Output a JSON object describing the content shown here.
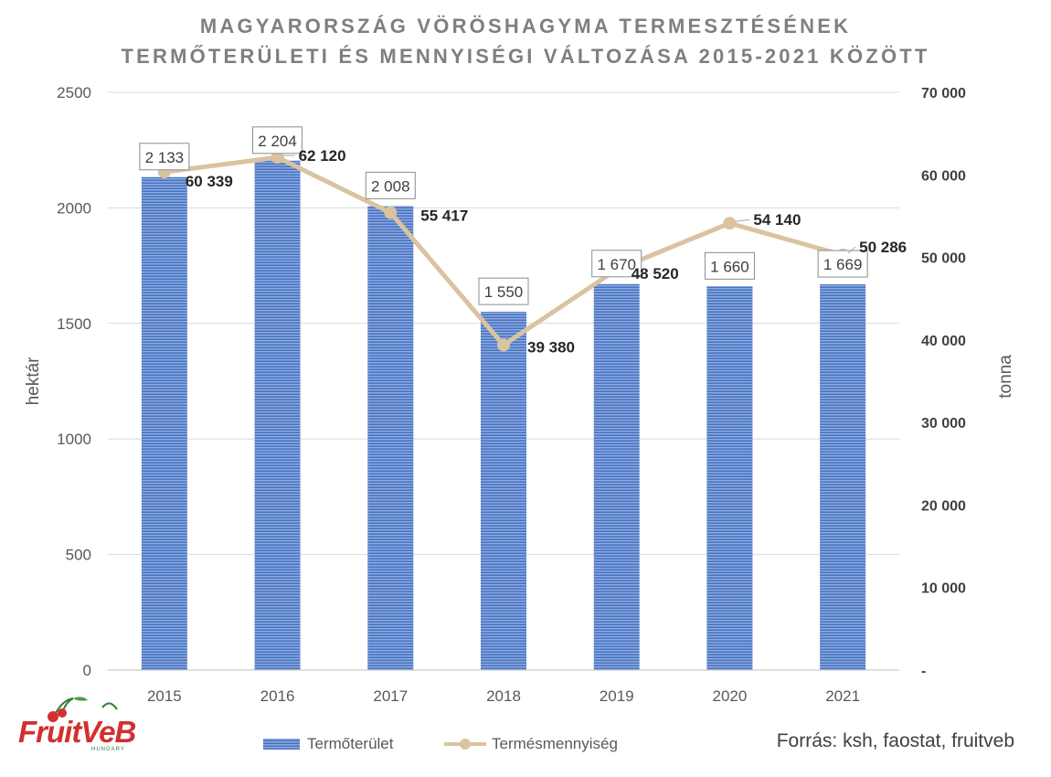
{
  "chart_data": {
    "type": "bar+line",
    "title_line1": "MAGYARORSZÁG VÖRÖSHAGYMA TERMESZTÉSÉNEK",
    "title_line2": "TERMŐTERÜLETI ÉS MENNYISÉGI VÁLTOZÁSA 2015-2021 KÖZÖTT",
    "categories": [
      "2015",
      "2016",
      "2017",
      "2018",
      "2019",
      "2020",
      "2021"
    ],
    "bar_series": {
      "name": "Termőterület",
      "axis": "left",
      "values": [
        2133,
        2204,
        2008,
        1550,
        1670,
        1660,
        1669
      ],
      "labels": [
        "2 133",
        "2 204",
        "2 008",
        "1 550",
        "1 670",
        "1 660",
        "1 669"
      ],
      "color": "#4472c4",
      "color_light": "#8ea9db"
    },
    "line_series": {
      "name": "Termésmennyiség",
      "axis": "right",
      "values": [
        60339,
        62120,
        55417,
        39380,
        48520,
        54140,
        50286
      ],
      "labels": [
        "60 339",
        "62 120",
        "55 417",
        "39 380",
        "48 520",
        "54 140",
        "50 286"
      ],
      "color": "#d9c3a0"
    },
    "y_left": {
      "label": "hektár",
      "range": [
        0,
        2500
      ],
      "ticks": [
        0,
        500,
        1000,
        1500,
        2000,
        2500
      ],
      "tick_labels": [
        "0",
        "500",
        "1000",
        "1500",
        "2000",
        "2500"
      ]
    },
    "y_right": {
      "label": "tonna",
      "range": [
        0,
        70000
      ],
      "ticks": [
        0,
        10000,
        20000,
        30000,
        40000,
        50000,
        60000,
        70000
      ],
      "tick_labels": [
        "-",
        "10 000",
        "20 000",
        "30 000",
        "40 000",
        "50 000",
        "60 000",
        "70 000"
      ]
    },
    "grid": true,
    "legend_position": "bottom"
  },
  "source": "Forrás: ksh, faostat, fruitveb",
  "logo": {
    "text": "FruitVeB",
    "sub": "HUNGARY"
  }
}
